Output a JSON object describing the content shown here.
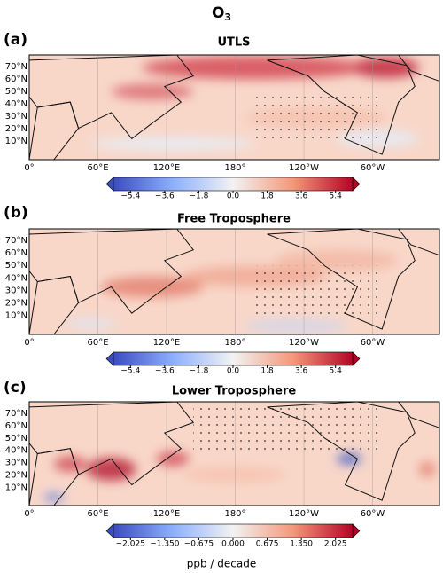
{
  "title": {
    "base": "O",
    "subscript": "3"
  },
  "lat_ticks": [
    "70°N",
    "60°N",
    "50°N",
    "40°N",
    "30°N",
    "20°N",
    "10°N"
  ],
  "lon_ticks": [
    "0°",
    "60°E",
    "120°E",
    "180°",
    "120°W",
    "60°W"
  ],
  "panels": [
    {
      "label": "(a)",
      "title": "UTLS",
      "colorbar": {
        "lim": [
          -6.3,
          6.3
        ],
        "ticks": [
          {
            "value": -5.4,
            "label": "−5.4"
          },
          {
            "value": -3.6,
            "label": "−3.6"
          },
          {
            "value": -1.8,
            "label": "−1.8"
          },
          {
            "value": 0,
            "label": "0.0"
          },
          {
            "value": 1.8,
            "label": "1.8"
          },
          {
            "value": 3.6,
            "label": "3.6"
          },
          {
            "value": 5.4,
            "label": "5.4"
          }
        ]
      }
    },
    {
      "label": "(b)",
      "title": "Free Troposphere",
      "colorbar": {
        "lim": [
          -6.3,
          6.3
        ],
        "ticks": [
          {
            "value": -5.4,
            "label": "−5.4"
          },
          {
            "value": -3.6,
            "label": "−3.6"
          },
          {
            "value": -1.8,
            "label": "−1.8"
          },
          {
            "value": 0,
            "label": "0.0"
          },
          {
            "value": 1.8,
            "label": "1.8"
          },
          {
            "value": 3.6,
            "label": "3.6"
          },
          {
            "value": 5.4,
            "label": "5.4"
          }
        ]
      }
    },
    {
      "label": "(c)",
      "title": "Lower Troposphere",
      "colorbar": {
        "lim": [
          -2.3625,
          2.3625
        ],
        "unit": "ppb / decade",
        "ticks": [
          {
            "value": -2.025,
            "label": "−2.025"
          },
          {
            "value": -1.35,
            "label": "−1.350"
          },
          {
            "value": -0.675,
            "label": "−0.675"
          },
          {
            "value": 0,
            "label": "0.000"
          },
          {
            "value": 0.675,
            "label": "0.675"
          },
          {
            "value": 1.35,
            "label": "1.350"
          },
          {
            "value": 2.025,
            "label": "2.025"
          }
        ]
      }
    }
  ]
}
